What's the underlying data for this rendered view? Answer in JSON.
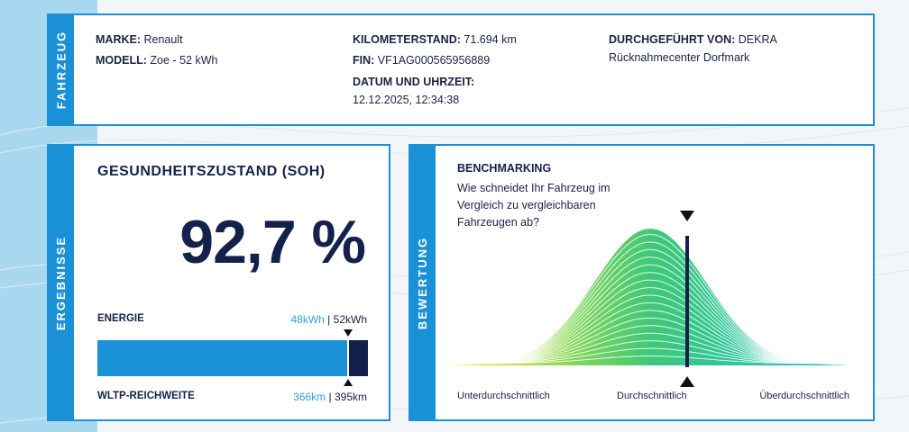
{
  "vehicle_section": {
    "tab_label": "FAHRZEUG",
    "make_key": "MARKE:",
    "make_value": "Renault",
    "model_key": "MODELL:",
    "model_value": "Zoe - 52 kWh",
    "mileage_key": "KILOMETERSTAND:",
    "mileage_value": "71.694 km",
    "vin_key": "FIN:",
    "vin_value": "VF1AG000565956889",
    "datetime_key": "DATUM UND UHRZEIT:",
    "datetime_value": "12.12.2025, 12:34:38",
    "performed_by_key": "DURCHGEFÜHRT VON:",
    "performed_by_value": "DEKRA",
    "location": "Rücknahmecenter Dorfmark"
  },
  "results_section": {
    "tab_label": "ERGEBNISSE",
    "title": "GESUNDHEITSZUSTAND (SOH)",
    "soh_value": "92,7 %",
    "energy_label": "ENERGIE",
    "energy_current": "48kWh",
    "energy_sep": " | ",
    "energy_total": "52kWh",
    "range_label": "WLTP-REICHWEITE",
    "range_current": "366km",
    "range_sep": " | ",
    "range_total": "395km",
    "fill_fraction": 0.927,
    "colors": {
      "fill": "#1a91d6",
      "remainder": "#15214d"
    }
  },
  "rating_section": {
    "tab_label": "BEWERTUNG",
    "title": "BENCHMARKING",
    "question": "Wie schneidet Ihr Fahrzeug im Vergleich zu vergleichbaren Fahrzeugen ab?",
    "axis_left": "Unterdurchschnittlich",
    "axis_center": "Durchschnittlich",
    "axis_right": "Überdurchschnittlich",
    "marker_fraction": 0.58,
    "colors": {
      "gradient_start": "#f0ee2a",
      "gradient_mid": "#40c878",
      "gradient_end": "#19c4c9",
      "marker": "#15214d"
    }
  }
}
